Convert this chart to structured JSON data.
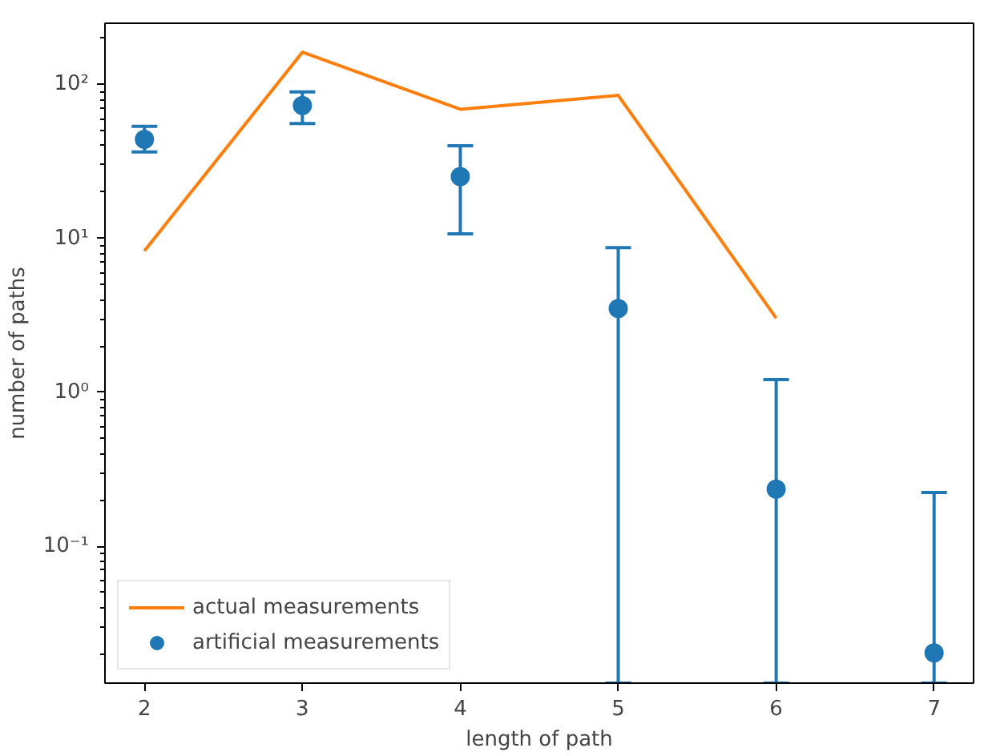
{
  "chart_data": {
    "type": "line",
    "xlabel": "length of path",
    "ylabel": "number of paths",
    "log": "y",
    "grid": false,
    "legend": "bottom left",
    "xlim": [
      1.75,
      7.25
    ],
    "xticks": [
      2,
      3,
      4,
      5,
      6,
      7
    ],
    "ylim": [
      0.0129,
      250
    ],
    "yticks": [
      {
        "value": 0.1,
        "label": "10⁻¹"
      },
      {
        "value": 1,
        "label": "10⁰"
      },
      {
        "value": 10,
        "label": "10¹"
      },
      {
        "value": 100,
        "label": "10²"
      }
    ],
    "series": [
      {
        "name": "actual measurements",
        "color": "#ff7f0e",
        "x": [
          2,
          3,
          4,
          5,
          6
        ],
        "values": [
          8.3,
          162,
          69,
          85,
          3.04
        ]
      },
      {
        "name": "artificial measurements",
        "type": "scatter",
        "marker": "circle",
        "color": "#1f77b4",
        "x": [
          2,
          3,
          4,
          5,
          6,
          7
        ],
        "values": [
          44,
          73,
          25.2,
          3.5,
          0.235,
          0.0203
        ],
        "errors": [
          [
            36.4,
            53.5
          ],
          [
            55.7,
            89.5
          ],
          [
            10.7,
            40
          ],
          [
            0.0129,
            8.7
          ],
          [
            0.0129,
            1.21
          ],
          [
            0.0129,
            0.223
          ]
        ]
      }
    ]
  }
}
